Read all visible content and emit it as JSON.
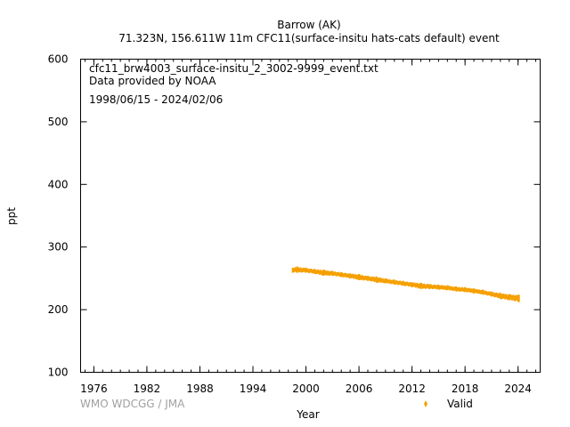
{
  "chart_data": {
    "type": "scatter",
    "title": "Barrow (AK)",
    "subtitle": "71.323N, 156.611W 11m    CFC11(surface-insitu hats-cats default) event",
    "xlabel": "Year",
    "ylabel": "ppt",
    "xlim": [
      1974.5,
      2026.5
    ],
    "ylim": [
      100,
      600
    ],
    "x_ticks": [
      "1976",
      "1982",
      "1988",
      "1994",
      "2000",
      "2006",
      "2012",
      "2018",
      "2024"
    ],
    "y_ticks": [
      "100",
      "200",
      "300",
      "400",
      "500",
      "600"
    ],
    "annotations": [
      "cfc11_brw4003_surface-insitu_2_3002-9999_event.txt",
      "Data provided by NOAA",
      "1998/06/15 - 2024/02/06"
    ],
    "credit": "WMO WDCGG / JMA",
    "legend": {
      "position": "bottom-right",
      "entries": [
        "Valid"
      ]
    },
    "grid": false,
    "series": [
      {
        "name": "Valid",
        "color": "#f5a000",
        "x": [
          1998.5,
          1999.0,
          2000.0,
          2001.0,
          2002.0,
          2003.0,
          2004.0,
          2005.0,
          2006.0,
          2007.0,
          2008.0,
          2009.0,
          2010.0,
          2011.0,
          2012.0,
          2013.0,
          2014.0,
          2015.0,
          2016.0,
          2017.0,
          2018.0,
          2019.0,
          2020.0,
          2021.0,
          2022.0,
          2023.0,
          2024.1
        ],
        "y": [
          263,
          264,
          263,
          261,
          259,
          258,
          256,
          254,
          252,
          250,
          248,
          246,
          244,
          242,
          240,
          238,
          237,
          236,
          235,
          233,
          232,
          230,
          228,
          225,
          222,
          220,
          218
        ],
        "spread": [
          4,
          5,
          4,
          4,
          5,
          4,
          4,
          4,
          5,
          4,
          5,
          4,
          4,
          4,
          4,
          5,
          4,
          4,
          4,
          4,
          4,
          4,
          4,
          4,
          5,
          5,
          6
        ]
      }
    ]
  }
}
